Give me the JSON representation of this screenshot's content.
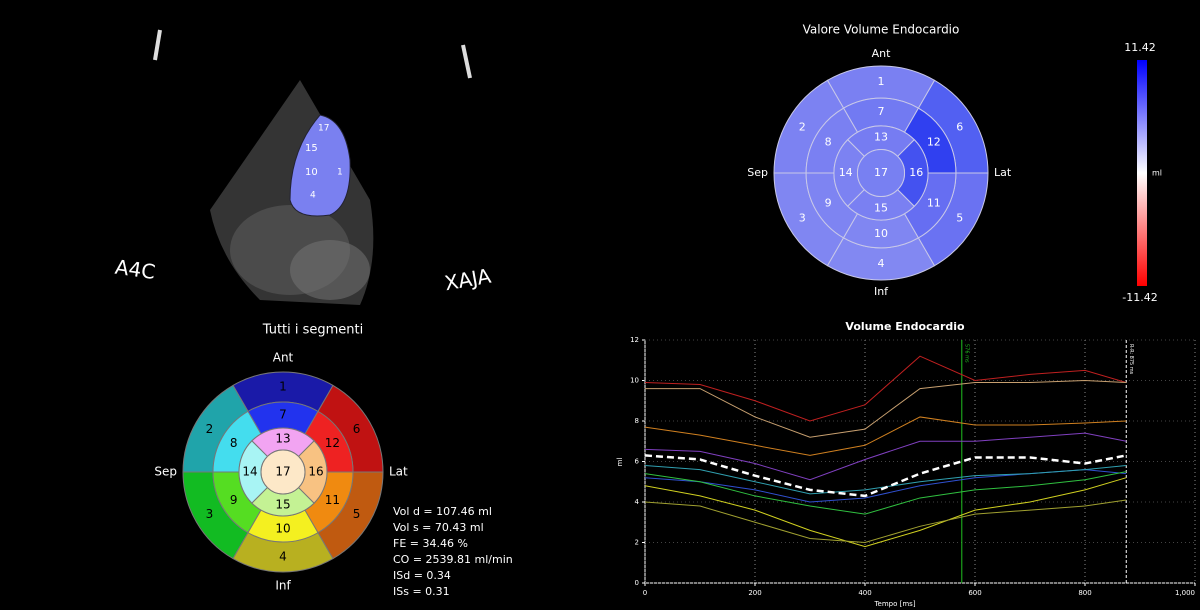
{
  "echo": {
    "view_label": "A4C",
    "probe_label": "XAJA",
    "mesh_labels": [
      "17",
      "15",
      "10",
      "4",
      "1"
    ]
  },
  "summary_bullseye": {
    "title": "Tutti i segmenti",
    "directions": {
      "top": "Ant",
      "left": "Sep",
      "right": "Lat",
      "bottom": "Inf"
    },
    "text_color": "#000000",
    "stroke": "#777777",
    "segments": [
      {
        "label": "1",
        "color": "#1a1aa8"
      },
      {
        "label": "2",
        "color": "#20a4aa"
      },
      {
        "label": "3",
        "color": "#12bb22"
      },
      {
        "label": "4",
        "color": "#b8b020"
      },
      {
        "label": "5",
        "color": "#c05a10"
      },
      {
        "label": "6",
        "color": "#c01212"
      },
      {
        "label": "7",
        "color": "#2233ee"
      },
      {
        "label": "8",
        "color": "#44ddee"
      },
      {
        "label": "9",
        "color": "#55dd22"
      },
      {
        "label": "10",
        "color": "#f4f020"
      },
      {
        "label": "11",
        "color": "#f08a10"
      },
      {
        "label": "12",
        "color": "#ee2222"
      },
      {
        "label": "13",
        "color": "#f2a4f2"
      },
      {
        "label": "14",
        "color": "#a8f4f4"
      },
      {
        "label": "15",
        "color": "#c4f294"
      },
      {
        "label": "16",
        "color": "#f8c282"
      },
      {
        "label": "17",
        "color": "#fde8c8"
      }
    ]
  },
  "volume_bullseye": {
    "title": "Valore Volume Endocardio",
    "directions": {
      "top": "Ant",
      "left": "Sep",
      "right": "Lat",
      "bottom": "Inf"
    },
    "text_color": "#ffffff",
    "stroke": "#c8c8e8",
    "segments": [
      {
        "label": "1",
        "color": "#7a80f2"
      },
      {
        "label": "2",
        "color": "#7c82f2"
      },
      {
        "label": "3",
        "color": "#8086f2"
      },
      {
        "label": "4",
        "color": "#8288f2"
      },
      {
        "label": "5",
        "color": "#6a72f2"
      },
      {
        "label": "6",
        "color": "#5260f2"
      },
      {
        "label": "7",
        "color": "#727af2"
      },
      {
        "label": "8",
        "color": "#7a80f2"
      },
      {
        "label": "9",
        "color": "#7e84f2"
      },
      {
        "label": "10",
        "color": "#8086f2"
      },
      {
        "label": "11",
        "color": "#666ef2"
      },
      {
        "label": "12",
        "color": "#3040f0"
      },
      {
        "label": "13",
        "color": "#767cf2"
      },
      {
        "label": "14",
        "color": "#7c82f2"
      },
      {
        "label": "15",
        "color": "#7a80f2"
      },
      {
        "label": "16",
        "color": "#4452f0"
      },
      {
        "label": "17",
        "color": "#7880f2"
      }
    ]
  },
  "colorbar": {
    "max": 11.42,
    "min": -11.42,
    "unit": "ml",
    "colors": [
      "#0000ff",
      "#ffffff",
      "#ff0000"
    ]
  },
  "stats": [
    "Vol d = 107.46 ml",
    "Vol s = 70.43 ml",
    "FE = 34.46 %",
    "CO = 2539.81 ml/min",
    "ISd = 0.34",
    "ISs = 0.31"
  ],
  "chart_data": {
    "type": "line",
    "title": "Volume Endocardio",
    "xlabel": "Tempo [ms]",
    "ylabel": "ml",
    "x": [
      0,
      100,
      200,
      300,
      400,
      500,
      600,
      700,
      800,
      875
    ],
    "xlim": [
      0,
      1000
    ],
    "xticks": [
      0,
      200,
      400,
      600,
      800,
      {
        "value": 1000,
        "label": "1,000"
      }
    ],
    "ylim": [
      0,
      12
    ],
    "yticks": [
      0,
      2,
      4,
      6,
      8,
      10,
      12
    ],
    "grid": true,
    "series": [
      {
        "color": "#c02020",
        "values": [
          9.9,
          9.8,
          9.0,
          8.0,
          8.8,
          11.2,
          10.0,
          10.3,
          10.5,
          9.9
        ]
      },
      {
        "color": "#c8a070",
        "values": [
          9.6,
          9.6,
          8.2,
          7.2,
          7.6,
          9.6,
          9.9,
          9.9,
          10.0,
          9.9
        ]
      },
      {
        "color": "#d08020",
        "values": [
          7.7,
          7.3,
          6.8,
          6.3,
          6.8,
          8.2,
          7.8,
          7.8,
          7.9,
          8.0
        ]
      },
      {
        "color": "#8040c0",
        "values": [
          6.6,
          6.5,
          5.9,
          5.1,
          6.1,
          7.0,
          7.0,
          7.2,
          7.4,
          7.0
        ]
      },
      {
        "color": "#3050d0",
        "values": [
          5.2,
          5.0,
          4.6,
          4.0,
          4.2,
          4.8,
          5.2,
          5.4,
          5.6,
          5.4
        ]
      },
      {
        "color": "#30a0b0",
        "values": [
          5.8,
          5.6,
          5.0,
          4.4,
          4.6,
          5.0,
          5.3,
          5.4,
          5.6,
          5.8
        ]
      },
      {
        "color": "#30c040",
        "values": [
          5.4,
          5.0,
          4.3,
          3.8,
          3.4,
          4.2,
          4.6,
          4.8,
          5.1,
          5.5
        ]
      },
      {
        "color": "#d0d020",
        "values": [
          4.8,
          4.3,
          3.6,
          2.6,
          1.8,
          2.6,
          3.6,
          4.0,
          4.6,
          5.2
        ]
      },
      {
        "color": "#a0a030",
        "values": [
          4.0,
          3.8,
          3.0,
          2.2,
          2.0,
          2.8,
          3.4,
          3.6,
          3.8,
          4.1
        ]
      },
      {
        "color": "#ffffff",
        "dashed": true,
        "values": [
          6.3,
          6.1,
          5.3,
          4.6,
          4.3,
          5.4,
          6.2,
          6.2,
          5.9,
          6.3
        ]
      }
    ],
    "annotations": [
      {
        "x": 576,
        "label": "576 ms",
        "color": "#20c020"
      },
      {
        "x": 875,
        "label": "R-R: 875 ms",
        "color": "#ffffff",
        "dashed": true
      }
    ]
  }
}
